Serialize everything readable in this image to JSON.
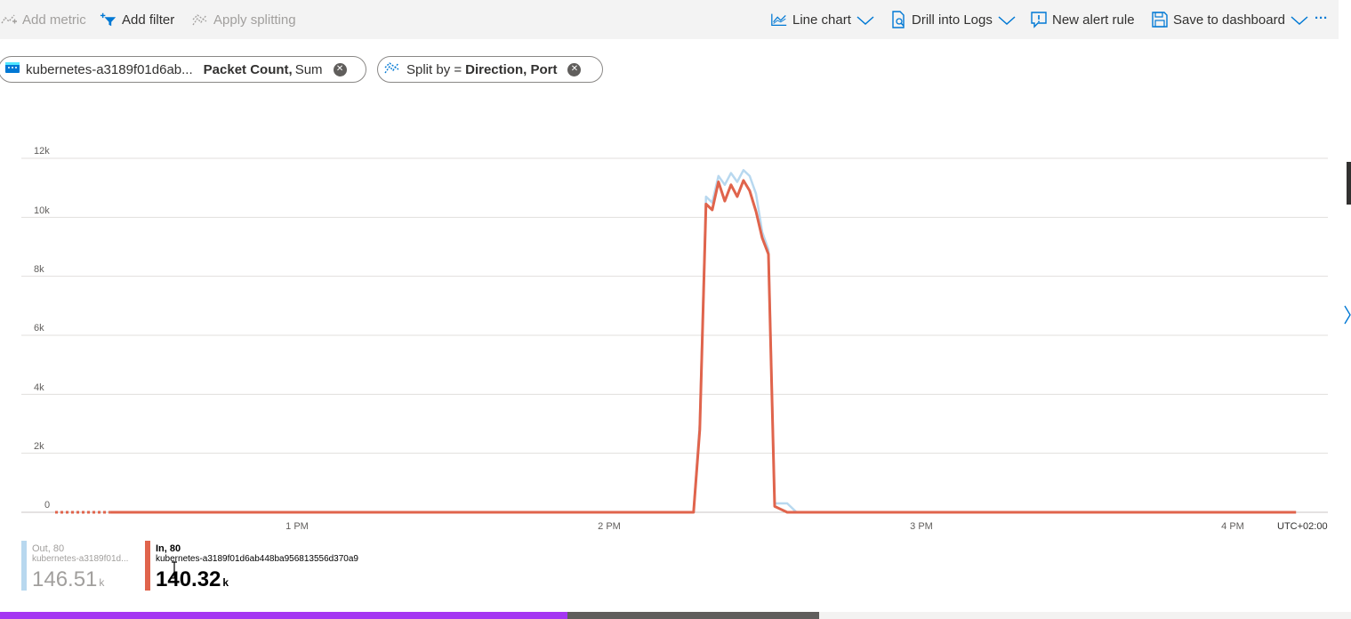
{
  "toolbar": {
    "add_metric": "Add metric",
    "add_filter": "Add filter",
    "apply_splitting": "Apply splitting",
    "line_chart": "Line chart",
    "drill_into_logs": "Drill into Logs",
    "new_alert_rule": "New alert rule",
    "save_to_dashboard": "Save to dashboard",
    "more": "···"
  },
  "pills": {
    "metric": {
      "resource": "kubernetes-a3189f01d6ab...",
      "metric_name": "Packet Count,",
      "aggregation": "Sum"
    },
    "split": {
      "prefix": "Split by =",
      "value": "Direction, Port"
    }
  },
  "chart_data": {
    "type": "line",
    "y_ticks": [
      "12k",
      "10k",
      "8k",
      "6k",
      "4k",
      "2k",
      "0"
    ],
    "ylim": [
      0,
      12000
    ],
    "x_ticks": [
      "1 PM",
      "2 PM",
      "3 PM",
      "4 PM"
    ],
    "timezone": "UTC+02:00",
    "x_hours": [
      12.4,
      12.8,
      13.5,
      14.0,
      14.27,
      14.29,
      14.31,
      14.33,
      14.35,
      14.37,
      14.39,
      14.41,
      14.43,
      14.45,
      14.47,
      14.49,
      14.51,
      14.53,
      14.55,
      14.57,
      14.6,
      14.8,
      15.5,
      16.2
    ],
    "series": [
      {
        "name": "Out, 80",
        "resource": "kubernetes-a3189f01d...",
        "total": "146.51",
        "unit": "k",
        "color": "#b8d8ef",
        "values": [
          0,
          0,
          0,
          0,
          0,
          3000,
          10700,
          10500,
          11400,
          11100,
          11500,
          11200,
          11600,
          11400,
          10800,
          9500,
          8900,
          300,
          300,
          300,
          0,
          0,
          0,
          0
        ]
      },
      {
        "name": "In, 80",
        "resource": "kubernetes-a3189f01d6ab448ba956813556d370a9",
        "total": "140.32",
        "unit": "k",
        "color": "#e0644c",
        "values": [
          0,
          0,
          0,
          0,
          0,
          2800,
          10450,
          10250,
          11200,
          10550,
          11100,
          10700,
          11250,
          10900,
          10200,
          9300,
          8750,
          200,
          100,
          0,
          0,
          0,
          0,
          0
        ]
      }
    ]
  },
  "bottom_bar": {
    "fill_fraction": 0.42,
    "buffer_fraction": 0.606
  }
}
